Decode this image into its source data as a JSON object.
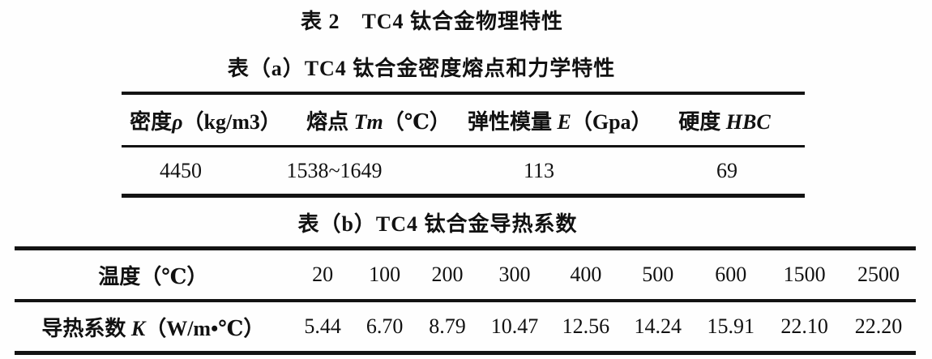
{
  "page": {
    "title": "表 2　TC4 钛合金物理特性"
  },
  "table_a": {
    "caption": "表（a）TC4 钛合金密度熔点和力学特性",
    "headers": [
      {
        "prefix": "密度",
        "symbol": "ρ",
        "suffix": "（kg/m3）"
      },
      {
        "prefix": "熔点 ",
        "symbol": "Tm",
        "suffix": "（℃）"
      },
      {
        "prefix": "弹性模量 ",
        "symbol": "E",
        "suffix": "（Gpa）"
      },
      {
        "prefix": "硬度 ",
        "symbol": "HBC",
        "suffix": ""
      }
    ],
    "values": [
      "4450",
      "1538~1649",
      "113",
      "69"
    ]
  },
  "table_b": {
    "caption": "表（b）TC4 钛合金导热系数",
    "rows": [
      {
        "label": {
          "prefix": "温度",
          "symbol": "",
          "suffix": "（℃）"
        },
        "cells": [
          "20",
          "100",
          "200",
          "300",
          "400",
          "500",
          "600",
          "1500",
          "2500"
        ]
      },
      {
        "label": {
          "prefix": "导热系数 ",
          "symbol": "K",
          "suffix": "（W/m•℃）"
        },
        "cells": [
          "5.44",
          "6.70",
          "8.79",
          "10.47",
          "12.56",
          "14.24",
          "15.91",
          "22.10",
          "22.20"
        ]
      }
    ]
  },
  "chart_data": [
    {
      "type": "table",
      "title": "表（a）TC4 钛合金密度熔点和力学特性",
      "columns": [
        "密度ρ（kg/m3）",
        "熔点 Tm（℃）",
        "弹性模量 E（Gpa）",
        "硬度 HBC"
      ],
      "rows": [
        [
          "4450",
          "1538~1649",
          "113",
          "69"
        ]
      ]
    },
    {
      "type": "table",
      "title": "表（b）TC4 钛合金导热系数",
      "columns": [
        "温度（℃）",
        "20",
        "100",
        "200",
        "300",
        "400",
        "500",
        "600",
        "1500",
        "2500"
      ],
      "rows": [
        [
          "导热系数 K（W/m•℃）",
          "5.44",
          "6.70",
          "8.79",
          "10.47",
          "12.56",
          "14.24",
          "15.91",
          "22.10",
          "22.20"
        ]
      ]
    }
  ],
  "colors": {
    "background": "#fefefe",
    "text": "#111111",
    "rule": "#131313"
  }
}
